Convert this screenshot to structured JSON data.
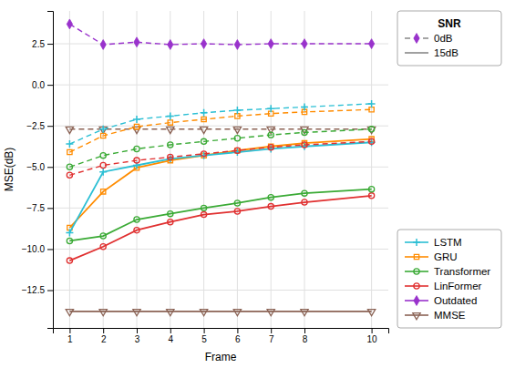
{
  "chart_data": {
    "type": "line",
    "x": [
      1,
      2,
      3,
      4,
      5,
      6,
      7,
      8,
      10
    ],
    "xlabel": "Frame",
    "ylabel": "MSE(dB)",
    "xlim": [
      0.5,
      10.5
    ],
    "xticks": [
      1,
      2,
      3,
      4,
      5,
      6,
      7,
      8,
      10
    ],
    "ylim": [
      -14.8,
      4.5
    ],
    "yticks": [
      2.5,
      {
        "value": 0.0,
        "label": "0.0"
      },
      {
        "value": -2.5,
        "label": "−2.5"
      },
      {
        "value": -5.0,
        "label": "−5.0"
      },
      {
        "value": -7.5,
        "label": "−7.5"
      },
      {
        "value": -10.0,
        "label": "−10.0"
      },
      {
        "value": -12.5,
        "label": "−12.5"
      }
    ],
    "grid": true,
    "series": [
      {
        "name": "LSTM",
        "color": "#2bbfd4",
        "line_style": "dashed",
        "marker": "plus",
        "values": [
          -3.6,
          -2.7,
          -2.1,
          -1.9,
          -1.7,
          -1.55,
          -1.45,
          -1.35,
          -1.15
        ]
      },
      {
        "name": "GRU",
        "color": "#ff8c00",
        "line_style": "dashed",
        "marker": "square-open",
        "values": [
          -4.1,
          -3.1,
          -2.55,
          -2.3,
          -2.1,
          -1.9,
          -1.75,
          -1.65,
          -1.5
        ]
      },
      {
        "name": "Transformer",
        "color": "#3aaa35",
        "line_style": "dashed",
        "marker": "circle-open",
        "values": [
          -5.0,
          -4.3,
          -3.9,
          -3.65,
          -3.45,
          -3.25,
          -3.05,
          -2.9,
          -2.7
        ]
      },
      {
        "name": "LinFormer",
        "color": "#e03030",
        "line_style": "dashed",
        "marker": "circle-open",
        "values": [
          -5.5,
          -4.9,
          -4.6,
          -4.4,
          -4.2,
          -4.0,
          -3.8,
          -3.65,
          -3.45
        ]
      },
      {
        "name": "MMSE",
        "color": "#8b6355",
        "line_style": "dashed",
        "marker": "triangle-down-open",
        "values": [
          -2.7,
          -2.7,
          -2.7,
          -2.7,
          -2.7,
          -2.7,
          -2.7,
          -2.7,
          -2.7
        ]
      },
      {
        "name": "Outdated",
        "color": "#9932cc",
        "line_style": "dashed",
        "marker": "diamond",
        "values": [
          3.7,
          2.45,
          2.6,
          2.45,
          2.5,
          2.45,
          2.5,
          2.5,
          2.5
        ]
      },
      {
        "name": "LSTM",
        "color": "#2bbfd4",
        "line_style": "solid",
        "marker": "plus",
        "values": [
          -9.0,
          -5.3,
          -4.9,
          -4.5,
          -4.3,
          -4.1,
          -3.9,
          -3.75,
          -3.5
        ]
      },
      {
        "name": "GRU",
        "color": "#ff8c00",
        "line_style": "solid",
        "marker": "square-open",
        "values": [
          -8.7,
          -6.5,
          -5.05,
          -4.6,
          -4.3,
          -4.0,
          -3.75,
          -3.55,
          -3.3
        ]
      },
      {
        "name": "Transformer",
        "color": "#3aaa35",
        "line_style": "solid",
        "marker": "circle-open",
        "values": [
          -9.5,
          -9.2,
          -8.2,
          -7.85,
          -7.5,
          -7.2,
          -6.85,
          -6.6,
          -6.35
        ]
      },
      {
        "name": "LinFormer",
        "color": "#e03030",
        "line_style": "solid",
        "marker": "circle-open",
        "values": [
          -10.7,
          -9.85,
          -8.85,
          -8.35,
          -7.9,
          -7.7,
          -7.4,
          -7.15,
          -6.75
        ]
      },
      {
        "name": "MMSE",
        "color": "#8b6355",
        "line_style": "solid",
        "marker": "triangle-down-open",
        "values": [
          -13.8,
          -13.8,
          -13.8,
          -13.8,
          -13.8,
          -13.8,
          -13.8,
          -13.8,
          -13.8
        ]
      }
    ],
    "legends": [
      {
        "title": "SNR",
        "legend": "upper right",
        "entries": [
          {
            "name": "0dB",
            "color": "#888888",
            "line_style": "dashed",
            "marker": "diamond",
            "marker_color": "#9932cc"
          },
          {
            "name": "15dB",
            "color": "#888888",
            "line_style": "solid"
          }
        ]
      },
      {
        "legend": "lower right",
        "entries": [
          {
            "name": "LSTM",
            "color": "#2bbfd4",
            "line_style": "solid",
            "marker": "plus"
          },
          {
            "name": "GRU",
            "color": "#ff8c00",
            "line_style": "solid",
            "marker": "square-open"
          },
          {
            "name": "Transformer",
            "color": "#3aaa35",
            "line_style": "solid",
            "marker": "circle-open"
          },
          {
            "name": "LinFormer",
            "color": "#e03030",
            "line_style": "solid",
            "marker": "circle-open"
          },
          {
            "name": "Outdated",
            "color": "#9932cc",
            "line_style": "solid",
            "marker": "diamond"
          },
          {
            "name": "MMSE",
            "color": "#8b6355",
            "line_style": "solid",
            "marker": "triangle-down-open"
          }
        ]
      }
    ]
  }
}
